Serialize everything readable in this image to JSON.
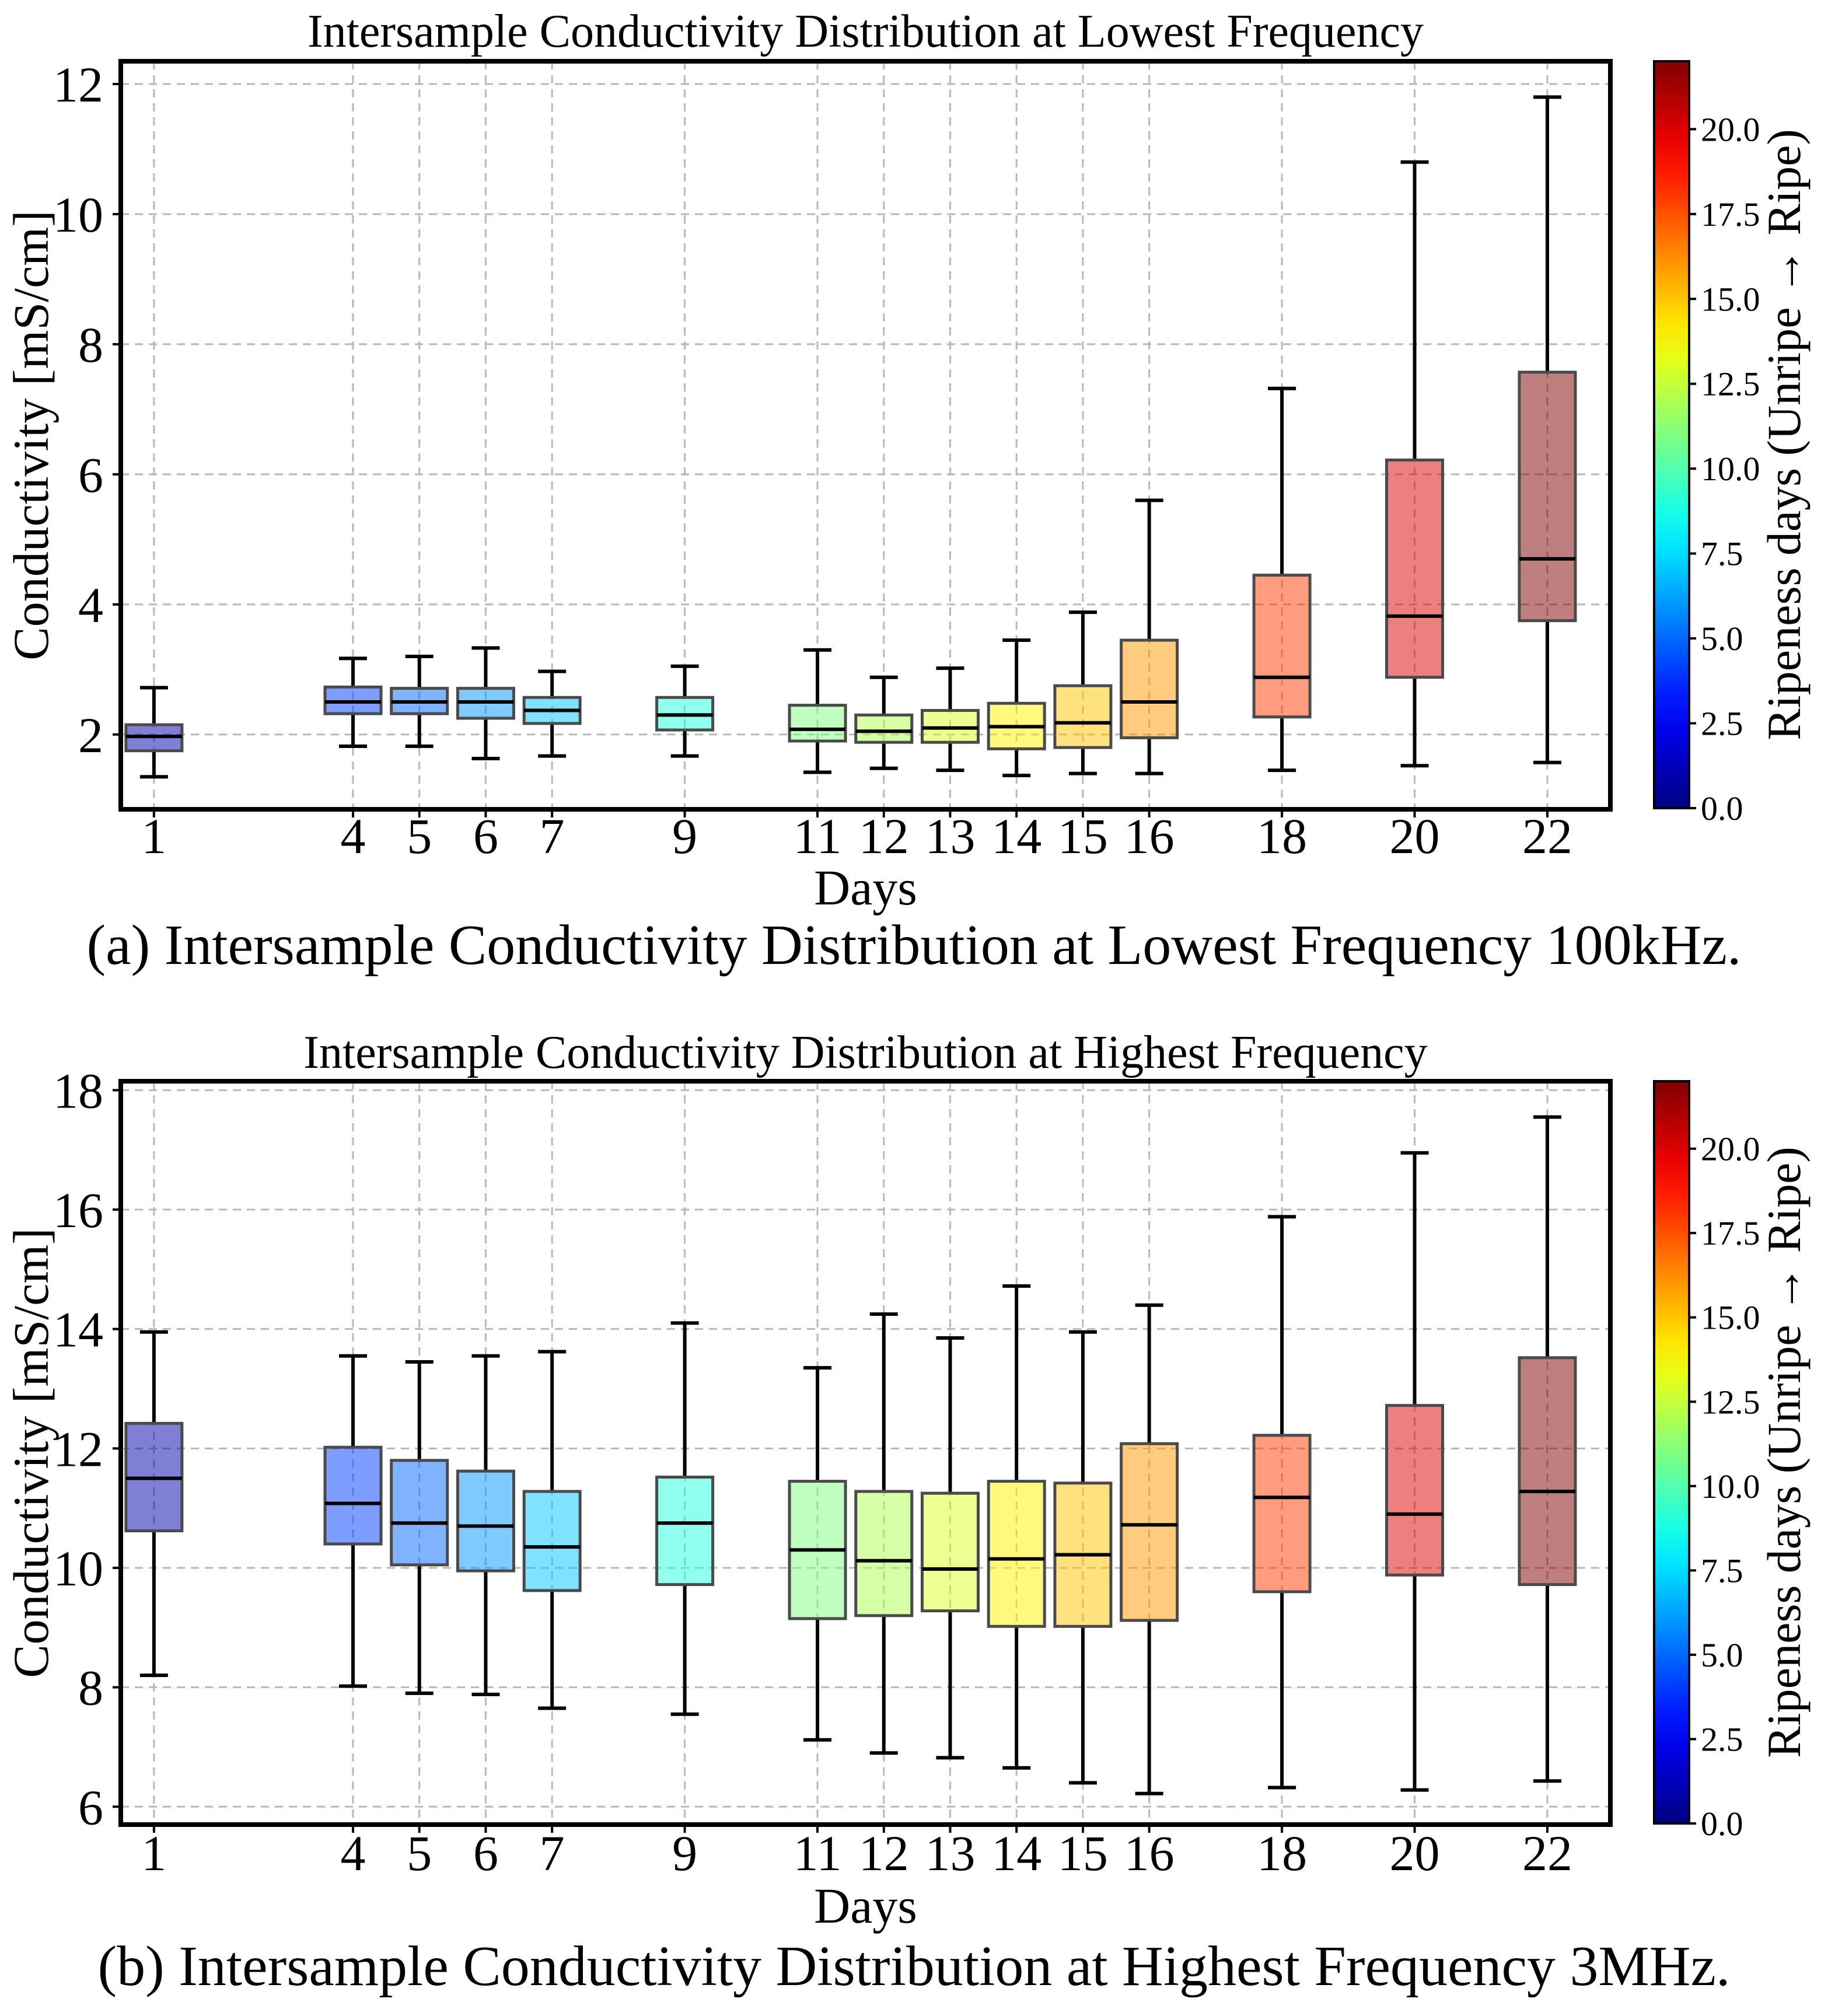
{
  "chart_data": [
    {
      "type": "box",
      "title": "Intersample Conductivity Distribution at Lowest Frequency",
      "caption": "(a) Intersample Conductivity Distribution at Lowest Frequency 100kHz.",
      "xlabel": "Days",
      "ylabel": "Conductivity [mS/cm]",
      "ylim": [
        0.85,
        12.35
      ],
      "yticks": [
        2,
        4,
        6,
        8,
        10,
        12
      ],
      "grid": true,
      "categories": [
        "1",
        "4",
        "5",
        "6",
        "7",
        "9",
        "11",
        "12",
        "13",
        "14",
        "15",
        "16",
        "18",
        "20",
        "22"
      ],
      "boxes": [
        {
          "day": 1,
          "whislo": 1.35,
          "q1": 1.75,
          "med": 1.97,
          "q3": 2.15,
          "whishi": 2.72
        },
        {
          "day": 4,
          "whislo": 1.82,
          "q1": 2.32,
          "med": 2.5,
          "q3": 2.73,
          "whishi": 3.17
        },
        {
          "day": 5,
          "whislo": 1.82,
          "q1": 2.32,
          "med": 2.5,
          "q3": 2.71,
          "whishi": 3.2
        },
        {
          "day": 6,
          "whislo": 1.63,
          "q1": 2.25,
          "med": 2.5,
          "q3": 2.71,
          "whishi": 3.33
        },
        {
          "day": 7,
          "whislo": 1.67,
          "q1": 2.17,
          "med": 2.37,
          "q3": 2.57,
          "whishi": 2.97
        },
        {
          "day": 9,
          "whislo": 1.67,
          "q1": 2.07,
          "med": 2.3,
          "q3": 2.57,
          "whishi": 3.05
        },
        {
          "day": 11,
          "whislo": 1.42,
          "q1": 1.9,
          "med": 2.08,
          "q3": 2.45,
          "whishi": 3.3
        },
        {
          "day": 12,
          "whislo": 1.48,
          "q1": 1.88,
          "med": 2.05,
          "q3": 2.3,
          "whishi": 2.88
        },
        {
          "day": 13,
          "whislo": 1.45,
          "q1": 1.88,
          "med": 2.1,
          "q3": 2.37,
          "whishi": 3.02
        },
        {
          "day": 14,
          "whislo": 1.37,
          "q1": 1.78,
          "med": 2.12,
          "q3": 2.48,
          "whishi": 3.45
        },
        {
          "day": 15,
          "whislo": 1.4,
          "q1": 1.8,
          "med": 2.18,
          "q3": 2.75,
          "whishi": 3.88
        },
        {
          "day": 16,
          "whislo": 1.4,
          "q1": 1.95,
          "med": 2.5,
          "q3": 3.45,
          "whishi": 5.6
        },
        {
          "day": 18,
          "whislo": 1.45,
          "q1": 2.27,
          "med": 2.88,
          "q3": 4.45,
          "whishi": 7.32
        },
        {
          "day": 20,
          "whislo": 1.52,
          "q1": 2.88,
          "med": 3.82,
          "q3": 6.22,
          "whishi": 10.8
        },
        {
          "day": 22,
          "whislo": 1.57,
          "q1": 3.75,
          "med": 4.7,
          "q3": 7.57,
          "whishi": 11.8
        }
      ]
    },
    {
      "type": "box",
      "title": "Intersample Conductivity Distribution at Highest Frequency",
      "caption": "(b) Intersample Conductivity Distribution at Highest Frequency 3MHz.",
      "xlabel": "Days",
      "ylabel": "Conductivity [mS/cm]",
      "ylim": [
        5.7,
        18.15
      ],
      "yticks": [
        6,
        8,
        10,
        12,
        14,
        16,
        18
      ],
      "grid": true,
      "categories": [
        "1",
        "4",
        "5",
        "6",
        "7",
        "9",
        "11",
        "12",
        "13",
        "14",
        "15",
        "16",
        "18",
        "20",
        "22"
      ],
      "boxes": [
        {
          "day": 1,
          "whislo": 8.2,
          "q1": 10.62,
          "med": 11.5,
          "q3": 12.42,
          "whishi": 13.95
        },
        {
          "day": 4,
          "whislo": 8.02,
          "q1": 10.4,
          "med": 11.08,
          "q3": 12.02,
          "whishi": 13.55
        },
        {
          "day": 5,
          "whislo": 7.9,
          "q1": 10.05,
          "med": 10.75,
          "q3": 11.8,
          "whishi": 13.45
        },
        {
          "day": 6,
          "whislo": 7.88,
          "q1": 9.95,
          "med": 10.7,
          "q3": 11.62,
          "whishi": 13.55
        },
        {
          "day": 7,
          "whislo": 7.65,
          "q1": 9.62,
          "med": 10.35,
          "q3": 11.28,
          "whishi": 13.62
        },
        {
          "day": 9,
          "whislo": 7.55,
          "q1": 9.72,
          "med": 10.75,
          "q3": 11.52,
          "whishi": 14.1
        },
        {
          "day": 11,
          "whislo": 7.12,
          "q1": 9.15,
          "med": 10.3,
          "q3": 11.45,
          "whishi": 13.35
        },
        {
          "day": 12,
          "whislo": 6.9,
          "q1": 9.2,
          "med": 10.12,
          "q3": 11.28,
          "whishi": 14.25
        },
        {
          "day": 13,
          "whislo": 6.82,
          "q1": 9.28,
          "med": 9.98,
          "q3": 11.25,
          "whishi": 13.85
        },
        {
          "day": 14,
          "whislo": 6.65,
          "q1": 9.02,
          "med": 10.15,
          "q3": 11.45,
          "whishi": 14.72
        },
        {
          "day": 15,
          "whislo": 6.4,
          "q1": 9.02,
          "med": 10.22,
          "q3": 11.42,
          "whishi": 13.95
        },
        {
          "day": 16,
          "whislo": 6.22,
          "q1": 9.12,
          "med": 10.72,
          "q3": 12.08,
          "whishi": 14.4
        },
        {
          "day": 18,
          "whislo": 6.32,
          "q1": 9.6,
          "med": 11.18,
          "q3": 12.22,
          "whishi": 15.88
        },
        {
          "day": 20,
          "whislo": 6.28,
          "q1": 9.88,
          "med": 10.9,
          "q3": 12.72,
          "whishi": 16.95
        },
        {
          "day": 22,
          "whislo": 6.43,
          "q1": 9.72,
          "med": 11.28,
          "q3": 13.52,
          "whishi": 17.55
        }
      ]
    }
  ],
  "colorbar": {
    "label": "Ripeness days (Unripe → Ripe)",
    "range": [
      0,
      22
    ],
    "ticks": [
      "0.0",
      "2.5",
      "5.0",
      "7.5",
      "10.0",
      "12.5",
      "15.0",
      "17.5",
      "20.0"
    ],
    "colormap": "jet",
    "box_alpha": 0.5
  }
}
